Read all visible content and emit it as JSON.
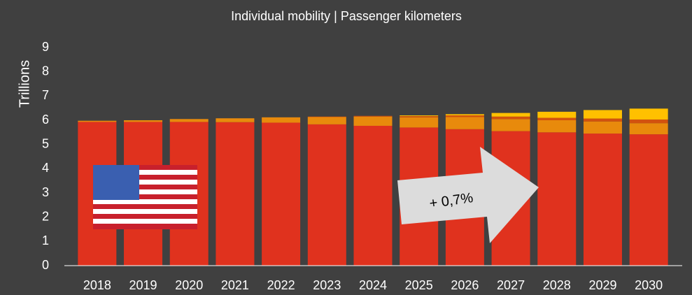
{
  "chart_data": {
    "type": "stacked_bar",
    "title": "Individual mobility | Passenger kilometers",
    "ylabel": "Trillions",
    "annotation": "+ 0,7%",
    "categories": [
      "2018",
      "2019",
      "2020",
      "2021",
      "2022",
      "2023",
      "2024",
      "2025",
      "2026",
      "2027",
      "2028",
      "2029",
      "2030"
    ],
    "series": [
      {
        "color": "#e0321e",
        "values": [
          5.93,
          5.93,
          5.93,
          5.92,
          5.9,
          5.83,
          5.77,
          5.7,
          5.63,
          5.55,
          5.5,
          5.45,
          5.42
        ]
      },
      {
        "color": "#e88a0c",
        "values": [
          0.05,
          0.07,
          0.12,
          0.16,
          0.22,
          0.3,
          0.38,
          0.42,
          0.5,
          0.5,
          0.5,
          0.5,
          0.46
        ]
      },
      {
        "color": "#d2520e",
        "values": [
          0,
          0,
          0,
          0,
          0,
          0.02,
          0.03,
          0.05,
          0.07,
          0.1,
          0.1,
          0.12,
          0.15
        ]
      },
      {
        "color": "#ffc000",
        "values": [
          0,
          0,
          0,
          0,
          0,
          0,
          0,
          0.03,
          0.05,
          0.15,
          0.25,
          0.35,
          0.45
        ]
      }
    ],
    "ylim": [
      0,
      9
    ],
    "yticks": [
      0,
      1,
      2,
      3,
      4,
      5,
      6,
      7,
      8,
      9
    ]
  }
}
